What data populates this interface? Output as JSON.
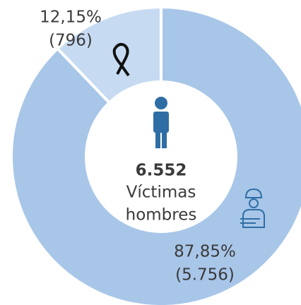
{
  "chart_data": {
    "type": "donut",
    "values": [
      87.85,
      12.15
    ],
    "value_labels": [
      "87,85%",
      "12,15%"
    ],
    "counts": [
      5756,
      796
    ],
    "count_labels": [
      "(5.756)",
      "(796)"
    ],
    "colors": [
      "#a8c6e8",
      "#c6dbf2"
    ],
    "total": 6552,
    "total_label": "6.552",
    "center_text": [
      "Víctimas",
      "hombres"
    ]
  }
}
